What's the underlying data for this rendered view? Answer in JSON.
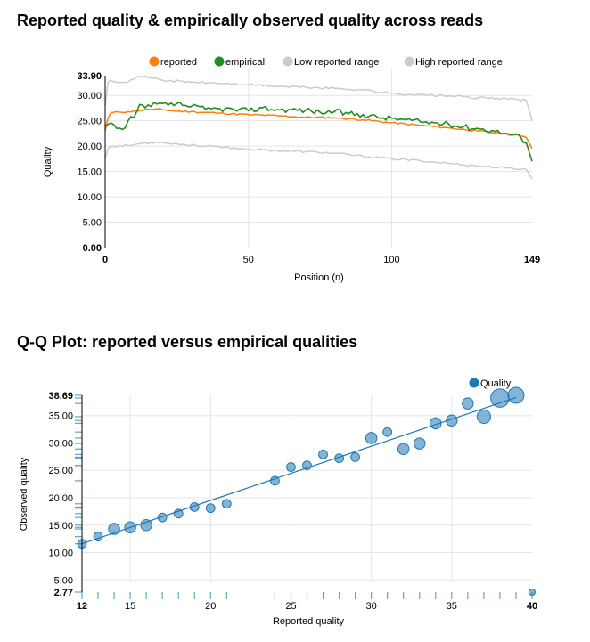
{
  "chart_data": [
    {
      "type": "line",
      "title": "Reported quality & empirically observed quality across reads",
      "xlabel": "Position (n)",
      "ylabel": "Quality",
      "xlim": [
        0,
        149
      ],
      "ylim": [
        0,
        33.9
      ],
      "x_ticks": [
        "0",
        "50",
        "100",
        "149"
      ],
      "y_ticks": [
        "0.00",
        "5.00",
        "10.00",
        "15.00",
        "20.00",
        "25.00",
        "30.00",
        "33.90"
      ],
      "grid": true,
      "legend_position": "top",
      "series": [
        {
          "name": "reported",
          "color": "#ff7f0e",
          "keypoints": [
            [
              0,
              23.0
            ],
            [
              1,
              25.5
            ],
            [
              2,
              26.6
            ],
            [
              5,
              26.7
            ],
            [
              8,
              26.8
            ],
            [
              12,
              27.0
            ],
            [
              15,
              27.3
            ],
            [
              20,
              27.2
            ],
            [
              25,
              26.9
            ],
            [
              30,
              26.8
            ],
            [
              40,
              26.5
            ],
            [
              50,
              26.2
            ],
            [
              60,
              26.0
            ],
            [
              70,
              25.7
            ],
            [
              80,
              25.6
            ],
            [
              90,
              25.2
            ],
            [
              100,
              24.6
            ],
            [
              110,
              24.1
            ],
            [
              120,
              23.6
            ],
            [
              130,
              23.0
            ],
            [
              140,
              22.4
            ],
            [
              145,
              22.0
            ],
            [
              147,
              21.7
            ],
            [
              149,
              19.5
            ]
          ]
        },
        {
          "name": "empirical",
          "color": "#228b22",
          "keypoints": [
            [
              0,
              24.0
            ],
            [
              2,
              24.6
            ],
            [
              4,
              23.5
            ],
            [
              6,
              23.3
            ],
            [
              7,
              23.6
            ],
            [
              8,
              25.0
            ],
            [
              10,
              25.6
            ],
            [
              11,
              26.8
            ],
            [
              12,
              28.2
            ],
            [
              14,
              27.6
            ],
            [
              18,
              28.3
            ],
            [
              22,
              28.1
            ],
            [
              25,
              28.4
            ],
            [
              30,
              27.8
            ],
            [
              35,
              27.3
            ],
            [
              40,
              27.4
            ],
            [
              45,
              27.2
            ],
            [
              50,
              27.0
            ],
            [
              55,
              27.6
            ],
            [
              60,
              27.2
            ],
            [
              65,
              27.2
            ],
            [
              70,
              27.1
            ],
            [
              75,
              26.7
            ],
            [
              80,
              26.8
            ],
            [
              85,
              26.4
            ],
            [
              90,
              26.2
            ],
            [
              95,
              25.7
            ],
            [
              100,
              25.5
            ],
            [
              105,
              25.2
            ],
            [
              110,
              24.8
            ],
            [
              115,
              24.6
            ],
            [
              120,
              24.3
            ],
            [
              125,
              23.8
            ],
            [
              130,
              23.5
            ],
            [
              135,
              23.1
            ],
            [
              140,
              22.5
            ],
            [
              145,
              21.8
            ],
            [
              147,
              20.6
            ],
            [
              149,
              17.0
            ]
          ]
        },
        {
          "name": "Low reported range",
          "color": "#cccccc",
          "keypoints": [
            [
              0,
              17.5
            ],
            [
              1,
              19.5
            ],
            [
              2,
              20.0
            ],
            [
              8,
              20.1
            ],
            [
              12,
              20.5
            ],
            [
              18,
              20.8
            ],
            [
              22,
              20.6
            ],
            [
              30,
              20.2
            ],
            [
              40,
              19.8
            ],
            [
              50,
              19.4
            ],
            [
              60,
              19.1
            ],
            [
              70,
              18.9
            ],
            [
              80,
              18.6
            ],
            [
              90,
              18.0
            ],
            [
              100,
              17.5
            ],
            [
              110,
              17.1
            ],
            [
              120,
              16.6
            ],
            [
              130,
              16.1
            ],
            [
              140,
              15.7
            ],
            [
              147,
              15.4
            ],
            [
              149,
              13.5
            ]
          ]
        },
        {
          "name": "High reported range",
          "color": "#cccccc",
          "keypoints": [
            [
              0,
              28.0
            ],
            [
              1,
              32.6
            ],
            [
              2,
              33.0
            ],
            [
              6,
              32.6
            ],
            [
              10,
              33.2
            ],
            [
              12,
              33.8
            ],
            [
              16,
              33.5
            ],
            [
              20,
              33.0
            ],
            [
              30,
              32.6
            ],
            [
              40,
              32.4
            ],
            [
              50,
              32.1
            ],
            [
              60,
              31.8
            ],
            [
              70,
              31.6
            ],
            [
              80,
              31.4
            ],
            [
              90,
              31.1
            ],
            [
              100,
              30.4
            ],
            [
              110,
              30.1
            ],
            [
              120,
              29.9
            ],
            [
              130,
              29.5
            ],
            [
              140,
              29.4
            ],
            [
              147,
              29.0
            ],
            [
              149,
              25.0
            ]
          ]
        }
      ]
    },
    {
      "type": "scatter",
      "title": "Q-Q Plot: reported versus empirical qualities",
      "xlabel": "Reported quality",
      "ylabel": "Observed quality",
      "xlim": [
        12,
        40
      ],
      "ylim": [
        2.77,
        38.69
      ],
      "x_ticks": [
        "12",
        "15",
        "20",
        "25",
        "30",
        "35",
        "40"
      ],
      "y_ticks": [
        "2.77",
        "5.00",
        "10.00",
        "15.00",
        "20.00",
        "25.00",
        "30.00",
        "35.00",
        "38.69"
      ],
      "grid": true,
      "legend_position": "top-right",
      "legend": [
        {
          "name": "Quality",
          "color": "#1f77b4"
        }
      ],
      "reference_line": {
        "from": [
          12,
          11.6
        ],
        "to": [
          39,
          38.3
        ]
      },
      "points": [
        {
          "x": 12,
          "y": 11.6,
          "size": 2
        },
        {
          "x": 13,
          "y": 12.9,
          "size": 2
        },
        {
          "x": 14,
          "y": 14.3,
          "size": 3
        },
        {
          "x": 15,
          "y": 14.6,
          "size": 3
        },
        {
          "x": 16,
          "y": 15.0,
          "size": 3
        },
        {
          "x": 17,
          "y": 16.4,
          "size": 2
        },
        {
          "x": 18,
          "y": 17.1,
          "size": 2
        },
        {
          "x": 19,
          "y": 18.3,
          "size": 2
        },
        {
          "x": 20,
          "y": 18.1,
          "size": 2
        },
        {
          "x": 21,
          "y": 18.9,
          "size": 2
        },
        {
          "x": 24,
          "y": 23.1,
          "size": 2
        },
        {
          "x": 25,
          "y": 25.6,
          "size": 2
        },
        {
          "x": 26,
          "y": 25.9,
          "size": 2
        },
        {
          "x": 27,
          "y": 27.9,
          "size": 2
        },
        {
          "x": 28,
          "y": 27.2,
          "size": 2
        },
        {
          "x": 29,
          "y": 27.4,
          "size": 2
        },
        {
          "x": 30,
          "y": 30.9,
          "size": 3
        },
        {
          "x": 31,
          "y": 32.0,
          "size": 2
        },
        {
          "x": 32,
          "y": 28.9,
          "size": 3
        },
        {
          "x": 33,
          "y": 29.9,
          "size": 3
        },
        {
          "x": 34,
          "y": 33.6,
          "size": 3
        },
        {
          "x": 35,
          "y": 34.1,
          "size": 3
        },
        {
          "x": 36,
          "y": 37.2,
          "size": 3
        },
        {
          "x": 37,
          "y": 34.8,
          "size": 4
        },
        {
          "x": 38,
          "y": 38.2,
          "size": 6
        },
        {
          "x": 39,
          "y": 38.7,
          "size": 5
        },
        {
          "x": 40,
          "y": 2.77,
          "size": 1
        }
      ],
      "y_rug": [
        11.6,
        12.9,
        14.3,
        14.6,
        15.0,
        16.4,
        17.1,
        18.3,
        18.1,
        18.9,
        23.1,
        25.6,
        25.9,
        27.9,
        27.2,
        27.4,
        30.9,
        32.0,
        28.9,
        29.9,
        33.6,
        34.1,
        37.2,
        34.8,
        38.2,
        38.7,
        2.77
      ]
    }
  ]
}
